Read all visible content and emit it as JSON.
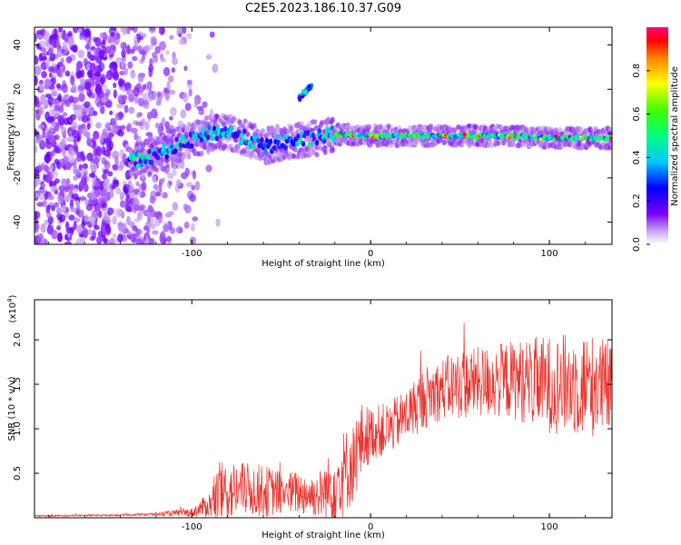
{
  "title": "C2E5.2023.186.10.37.G09",
  "chart_data": [
    {
      "type": "heatmap",
      "xlabel": "Height of straight line (km)",
      "ylabel": "Frequency (Hz)",
      "xlim": [
        -188,
        135
      ],
      "ylim": [
        -50,
        48
      ],
      "xticks": [
        -100,
        0,
        100
      ],
      "xtick_labels": [
        "-100",
        "0",
        "100"
      ],
      "yticks": [
        -40,
        -20,
        0,
        20,
        40
      ],
      "ytick_labels": [
        "-40",
        "-20",
        "0",
        "20",
        "40"
      ],
      "colorbar": {
        "label": "Normalized spectral amplitude",
        "range": [
          0,
          1
        ],
        "ticks": [
          0.0,
          0.2,
          0.4,
          0.6,
          0.8
        ],
        "tick_labels": [
          "0.0",
          "0.2",
          "0.4",
          "0.6",
          "0.8"
        ]
      },
      "ridge": {
        "x": [
          -130,
          -120,
          -110,
          -100,
          -90,
          -80,
          -70,
          -60,
          -50,
          -40,
          -30,
          -20,
          -10,
          0,
          20,
          40,
          60,
          80,
          100,
          120,
          135
        ],
        "frequency": [
          -12,
          -10,
          -6,
          -3,
          0,
          1,
          -2,
          -6,
          -4,
          -3,
          -2,
          0,
          -1,
          -1,
          -1,
          -1,
          -1,
          -1,
          -2,
          -2,
          -2
        ]
      },
      "secondary_feature": {
        "x": [
          -40,
          -33
        ],
        "frequency": [
          16,
          22
        ]
      },
      "noise_region_x": [
        -188,
        -100
      ]
    },
    {
      "type": "line",
      "xlabel": "Height of straight line (km)",
      "ylabel": "SNR (10 * v/v)",
      "scale_note": "(x10",
      "scale_exp": "4",
      "scale_close": ")",
      "xlim": [
        -188,
        135
      ],
      "ylim": [
        0,
        2.45
      ],
      "xticks": [
        -100,
        0,
        100
      ],
      "xtick_labels": [
        "-100",
        "0",
        "100"
      ],
      "yticks": [
        0.5,
        1.0,
        1.5,
        2.0
      ],
      "ytick_labels": [
        "0.5",
        "1.0",
        "1.5",
        "2.0"
      ],
      "color": "#e8322c",
      "envelope": {
        "x": [
          -188,
          -140,
          -120,
          -100,
          -90,
          -85,
          -80,
          -70,
          -60,
          -50,
          -40,
          -30,
          -25,
          -20,
          -15,
          -10,
          -5,
          0,
          10,
          20,
          30,
          40,
          50,
          60,
          80,
          100,
          120,
          135
        ],
        "mean": [
          0.02,
          0.03,
          0.04,
          0.06,
          0.15,
          0.25,
          0.3,
          0.32,
          0.3,
          0.28,
          0.28,
          0.25,
          0.3,
          0.4,
          0.5,
          0.6,
          0.85,
          0.95,
          1.0,
          1.15,
          1.35,
          1.45,
          1.5,
          1.52,
          1.55,
          1.5,
          1.5,
          1.45
        ],
        "spread": [
          0.01,
          0.01,
          0.02,
          0.05,
          0.15,
          0.35,
          0.35,
          0.3,
          0.3,
          0.25,
          0.25,
          0.25,
          0.35,
          0.45,
          0.5,
          0.45,
          0.45,
          0.3,
          0.3,
          0.3,
          0.35,
          0.35,
          0.4,
          0.4,
          0.45,
          0.55,
          0.6,
          0.55
        ]
      }
    }
  ]
}
